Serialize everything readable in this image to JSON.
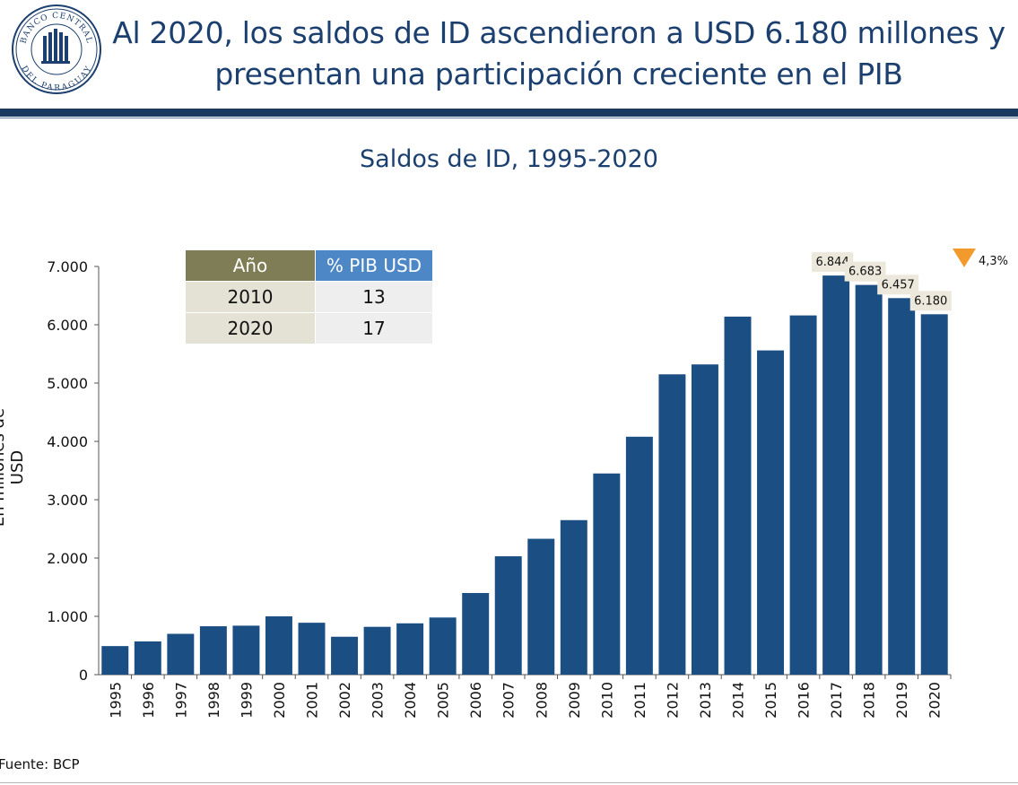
{
  "header": {
    "logo_text_top": "BANCO CENTRAL",
    "logo_text_bottom": "DEL PARAGUAY",
    "title_line1": "Al 2020, los saldos de ID ascendieron a USD 6.180 millones y",
    "title_line2": "presentan una participación creciente en el PIB"
  },
  "table": {
    "headers": [
      "Año",
      "% PIB USD"
    ],
    "rows": [
      [
        "2010",
        "13"
      ],
      [
        "2020",
        "17"
      ]
    ]
  },
  "indicator": {
    "text": "4,3%",
    "direction": "down",
    "color": "#f39a2c"
  },
  "source": "Fuente: BCP",
  "chart_data": {
    "type": "bar",
    "title": "Saldos de ID, 1995-2020",
    "xlabel": "",
    "ylabel": "En millones de USD",
    "ylim": [
      0,
      7000
    ],
    "yticks": [
      0,
      1000,
      2000,
      3000,
      4000,
      5000,
      6000,
      7000
    ],
    "ytick_labels": [
      "0",
      "1.000",
      "2.000",
      "3.000",
      "4.000",
      "5.000",
      "6.000",
      "7.000"
    ],
    "bar_color": "#1b4f84",
    "categories": [
      "1995",
      "1996",
      "1997",
      "1998",
      "1999",
      "2000",
      "2001",
      "2002",
      "2003",
      "2004",
      "2005",
      "2006",
      "2007",
      "2008",
      "2009",
      "2010",
      "2011",
      "2012",
      "2013",
      "2014",
      "2015",
      "2016",
      "2017",
      "2018",
      "2019",
      "2020"
    ],
    "values": [
      490,
      570,
      700,
      830,
      840,
      1000,
      890,
      650,
      820,
      880,
      980,
      1400,
      2030,
      2330,
      2650,
      3450,
      4080,
      5150,
      5320,
      6140,
      5560,
      6160,
      6844,
      6683,
      6457,
      6180
    ],
    "data_labels": [
      {
        "index": 22,
        "text": "6.844"
      },
      {
        "index": 23,
        "text": "6.683"
      },
      {
        "index": 24,
        "text": "6.457"
      },
      {
        "index": 25,
        "text": "6.180"
      }
    ],
    "grid": false
  }
}
